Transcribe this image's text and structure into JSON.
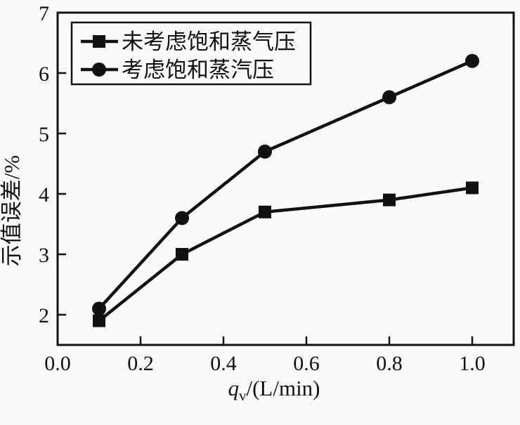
{
  "chart_data": {
    "type": "line",
    "title": "",
    "xlabel_symbol": "q",
    "xlabel_subscript": "v",
    "xlabel_unit": "/(L/min)",
    "ylabel": "示值误差/%",
    "xlim": [
      0,
      1.1
    ],
    "ylim": [
      1.5,
      7
    ],
    "xticks": {
      "values": [
        0.0,
        0.2,
        0.4,
        0.6,
        0.8,
        1.0
      ],
      "labels": [
        "0.0",
        "0.2",
        "0.4",
        "0.6",
        "0.8",
        "1.0"
      ]
    },
    "yticks": {
      "values": [
        2,
        3,
        4,
        5,
        6,
        7
      ],
      "labels": [
        "2",
        "3",
        "4",
        "5",
        "6",
        "7"
      ]
    },
    "x": [
      0.1,
      0.3,
      0.5,
      0.8,
      1.0
    ],
    "series": [
      {
        "name": "未考虑饱和蒸气压",
        "marker": "square",
        "values": [
          1.9,
          3.0,
          3.7,
          3.9,
          4.1
        ]
      },
      {
        "name": "考虑饱和蒸汽压",
        "marker": "circle",
        "values": [
          2.1,
          3.6,
          4.7,
          5.6,
          6.2
        ]
      }
    ],
    "legend_position": "top-left",
    "grid": false,
    "colors": {
      "line": "#111111",
      "marker": "#111111",
      "axis": "#111111",
      "background": "#fafaf8"
    }
  }
}
